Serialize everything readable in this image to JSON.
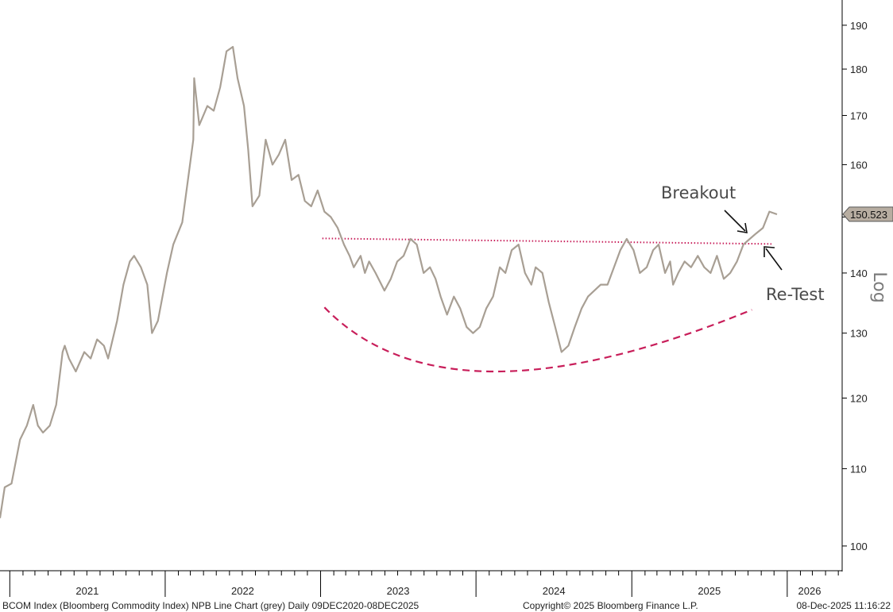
{
  "chart_data": {
    "type": "line",
    "scale": "log",
    "ylim": [
      97,
      196
    ],
    "y_ticks": [
      100,
      110,
      120,
      130,
      140,
      150,
      160,
      170,
      180,
      190
    ],
    "x_range": [
      "2020-12-09",
      "2025-12-08"
    ],
    "x_tick_labels": [
      "2021",
      "2022",
      "2023",
      "2024",
      "2025",
      "2026"
    ],
    "ylabel": "Log",
    "last_value": 150.523,
    "last_value_label": "150.523",
    "line_color": "#a89f94",
    "series": [
      {
        "x": [
          "2020-12-09",
          "2020-12-20",
          "2021-01-05",
          "2021-01-25",
          "2021-02-10",
          "2021-02-25",
          "2021-03-08",
          "2021-03-20",
          "2021-04-05",
          "2021-04-20",
          "2021-05-05",
          "2021-05-10",
          "2021-05-20",
          "2021-06-05",
          "2021-06-25",
          "2021-07-10",
          "2021-07-25",
          "2021-08-10",
          "2021-08-20",
          "2021-09-10",
          "2021-09-25",
          "2021-10-10",
          "2021-10-20",
          "2021-11-05",
          "2021-11-20",
          "2021-12-01",
          "2021-12-15",
          "2022-01-05",
          "2022-01-20",
          "2022-02-10",
          "2022-02-25",
          "2022-03-08",
          "2022-03-10",
          "2022-03-22",
          "2022-04-10",
          "2022-04-25",
          "2022-05-10",
          "2022-05-25",
          "2022-06-09",
          "2022-06-20",
          "2022-07-05",
          "2022-07-15",
          "2022-07-25",
          "2022-08-10",
          "2022-08-25",
          "2022-09-10",
          "2022-09-25",
          "2022-10-10",
          "2022-10-25",
          "2022-11-10",
          "2022-11-25",
          "2022-12-10",
          "2022-12-25",
          "2023-01-10",
          "2023-01-25",
          "2023-02-10",
          "2023-02-25",
          "2023-03-10",
          "2023-03-20",
          "2023-04-05",
          "2023-04-15",
          "2023-04-25",
          "2023-05-10",
          "2023-05-31",
          "2023-06-15",
          "2023-06-30",
          "2023-07-15",
          "2023-07-31",
          "2023-08-15",
          "2023-08-31",
          "2023-09-15",
          "2023-09-28",
          "2023-10-10",
          "2023-10-25",
          "2023-11-10",
          "2023-11-25",
          "2023-12-10",
          "2023-12-25",
          "2024-01-10",
          "2024-01-25",
          "2024-02-10",
          "2024-02-26",
          "2024-03-10",
          "2024-03-25",
          "2024-04-10",
          "2024-04-25",
          "2024-05-10",
          "2024-05-20",
          "2024-06-05",
          "2024-06-20",
          "2024-07-05",
          "2024-07-20",
          "2024-08-05",
          "2024-08-20",
          "2024-09-05",
          "2024-09-20",
          "2024-10-05",
          "2024-10-20",
          "2024-11-05",
          "2024-11-20",
          "2024-12-05",
          "2024-12-20",
          "2025-01-05",
          "2025-01-20",
          "2025-02-05",
          "2025-02-20",
          "2025-03-05",
          "2025-03-20",
          "2025-04-01",
          "2025-04-08",
          "2025-04-20",
          "2025-05-05",
          "2025-05-20",
          "2025-06-05",
          "2025-06-20",
          "2025-07-05",
          "2025-07-20",
          "2025-08-05",
          "2025-08-20",
          "2025-09-05",
          "2025-09-20",
          "2025-10-05",
          "2025-10-20",
          "2025-11-05",
          "2025-11-20",
          "2025-12-08"
        ],
        "values": [
          103.5,
          107.5,
          108,
          114,
          116,
          119,
          116,
          115,
          116,
          119,
          127,
          128,
          126,
          124,
          127,
          126,
          129,
          128,
          126,
          132,
          138,
          142,
          143,
          141,
          138,
          130,
          132,
          140,
          145,
          149,
          158,
          165,
          178,
          168,
          172,
          171,
          176,
          184,
          185,
          178,
          172,
          163,
          152,
          154,
          165,
          160,
          162,
          165,
          157,
          158,
          153,
          152,
          155,
          151,
          150,
          148,
          145,
          143,
          141,
          143,
          140,
          142,
          140,
          137,
          139,
          142,
          143,
          146,
          145,
          140,
          141,
          139,
          136,
          133,
          136,
          134,
          131,
          130,
          131,
          134,
          136,
          141,
          140,
          144,
          145,
          140,
          138,
          141,
          140,
          135,
          131,
          127,
          128,
          131,
          134,
          136,
          137,
          138,
          138,
          141,
          144,
          146,
          144,
          140,
          141,
          144,
          145,
          140,
          142,
          138,
          140,
          142,
          141,
          143,
          141,
          140,
          143,
          139,
          140,
          142,
          145,
          146,
          147,
          148,
          151,
          150.5
        ]
      }
    ],
    "annotations": [
      {
        "text": "Breakout"
      },
      {
        "text": "Re-Test"
      }
    ],
    "resistance_line": {
      "x": [
        "2023-01-05",
        "2025-11-25"
      ],
      "values": [
        146.1,
        145.1
      ],
      "color": "#c81e5a",
      "style": "dotted"
    },
    "base_arc": {
      "x": [
        "2023-01-10",
        "2024-02-10",
        "2025-10-10"
      ],
      "values": [
        134.2,
        124,
        133.8
      ],
      "color": "#c81e5a",
      "style": "dashed"
    }
  },
  "footer": {
    "left": "BCOM Index (Bloomberg Commodity Index) NPB Line Chart (grey) Daily 09DEC2020-08DEC2025",
    "center": "Copyright© 2025 Bloomberg Finance L.P.",
    "right": "08-Dec-2025 11:16:22"
  }
}
